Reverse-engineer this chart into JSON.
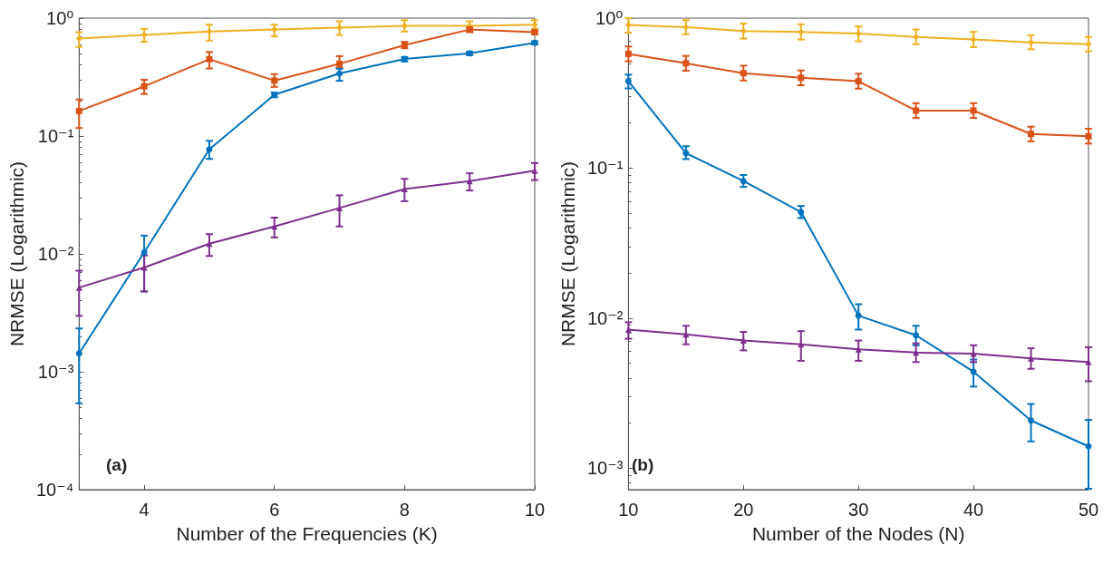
{
  "chart_data": [
    {
      "type": "line",
      "xlabel": "Number of the Frequencies (K)",
      "ylabel": "NRMSE (Logarithmic)",
      "annotations": [
        "(a)"
      ],
      "log": "y",
      "grid": false,
      "line_style": "solid",
      "xlim": [
        3,
        10
      ],
      "xticks": [
        4,
        6,
        8,
        10
      ],
      "ylim": [
        0.0001,
        1
      ],
      "yticks": [
        {
          "value": 0.0001,
          "label": "10⁻⁴"
        },
        {
          "value": 0.001,
          "label": "10⁻³"
        },
        {
          "value": 0.01,
          "label": "10⁻²"
        },
        {
          "value": 0.1,
          "label": "10⁻¹"
        },
        {
          "value": 1,
          "label": "10⁰"
        }
      ],
      "x": [
        3,
        4,
        5,
        6,
        7,
        8,
        9,
        10
      ],
      "series": [
        {
          "color": "#edb120",
          "marker": "diamond",
          "values": [
            0.67,
            0.72,
            0.77,
            0.8,
            0.83,
            0.86,
            0.86,
            0.88
          ],
          "errors": [
            [
              0.57,
              0.76
            ],
            [
              0.63,
              0.81
            ],
            [
              0.645,
              0.88
            ],
            [
              0.7,
              0.88
            ],
            [
              0.72,
              0.94
            ],
            [
              0.77,
              0.96
            ],
            [
              0.78,
              0.94
            ],
            [
              0.815,
              0.96
            ]
          ]
        },
        {
          "color": "#d95319",
          "marker": "square",
          "values": [
            0.163,
            0.264,
            0.448,
            0.295,
            0.41,
            0.59,
            0.8,
            0.76
          ],
          "errors": [
            [
              0.117,
              0.204
            ],
            [
              0.227,
              0.3
            ],
            [
              0.374,
              0.516
            ],
            [
              0.261,
              0.335
            ],
            [
              0.379,
              0.476
            ],
            [
              0.556,
              0.63
            ],
            [
              0.76,
              0.83
            ],
            [
              0.73,
              0.78
            ]
          ]
        },
        {
          "color": "#0072bd",
          "marker": "circle",
          "values": [
            0.00143,
            0.0103,
            0.0769,
            0.224,
            0.339,
            0.451,
            0.503,
            0.617
          ],
          "errors": [
            [
              0.00054,
              0.00233
            ],
            [
              0.0048,
              0.0143
            ],
            [
              0.064,
              0.091
            ],
            [
              0.213,
              0.234
            ],
            [
              0.294,
              0.372
            ],
            [
              0.429,
              0.468
            ],
            [
              0.485,
              0.52
            ],
            [
              0.599,
              0.636
            ]
          ]
        },
        {
          "color": "#7e2f8e",
          "marker": "triangle",
          "values": [
            0.00518,
            0.00766,
            0.0122,
            0.0171,
            0.0245,
            0.0355,
            0.0414,
            0.0508
          ],
          "errors": [
            [
              0.00298,
              0.0072
            ],
            [
              0.0048,
              0.0097
            ],
            [
              0.0096,
              0.0147
            ],
            [
              0.0138,
              0.0203
            ],
            [
              0.0171,
              0.0314
            ],
            [
              0.028,
              0.0433
            ],
            [
              0.0345,
              0.0483
            ],
            [
              0.0423,
              0.059
            ]
          ]
        }
      ]
    },
    {
      "type": "line",
      "xlabel": "Number of the Nodes (N)",
      "ylabel": "NRMSE (Logarithmic)",
      "annotations": [
        "(b)"
      ],
      "log": "y",
      "grid": false,
      "line_style": "solid",
      "xlim": [
        10,
        50
      ],
      "xticks": [
        10,
        20,
        30,
        40,
        50
      ],
      "ylim": [
        0.00072,
        1
      ],
      "yticks": [
        {
          "value": 0.001,
          "label": "10⁻³"
        },
        {
          "value": 0.01,
          "label": "10⁻²"
        },
        {
          "value": 0.1,
          "label": "10⁻¹"
        },
        {
          "value": 1,
          "label": "10⁰"
        }
      ],
      "x": [
        10,
        15,
        20,
        25,
        30,
        35,
        40,
        45,
        50
      ],
      "series": [
        {
          "color": "#edb120",
          "marker": "diamond",
          "values": [
            0.9,
            0.87,
            0.82,
            0.81,
            0.79,
            0.75,
            0.72,
            0.69,
            0.67
          ],
          "errors": [
            [
              0.8,
              1.0
            ],
            [
              0.78,
              0.97
            ],
            [
              0.73,
              0.92
            ],
            [
              0.72,
              0.91
            ],
            [
              0.7,
              0.88
            ],
            [
              0.67,
              0.84
            ],
            [
              0.64,
              0.81
            ],
            [
              0.62,
              0.77
            ],
            [
              0.6,
              0.75
            ]
          ]
        },
        {
          "color": "#d95319",
          "marker": "square",
          "values": [
            0.578,
            0.5,
            0.43,
            0.4,
            0.38,
            0.242,
            0.242,
            0.169,
            0.163
          ],
          "errors": [
            [
              0.516,
              0.647
            ],
            [
              0.446,
              0.56
            ],
            [
              0.384,
              0.482
            ],
            [
              0.357,
              0.448
            ],
            [
              0.339,
              0.426
            ],
            [
              0.216,
              0.271
            ],
            [
              0.216,
              0.271
            ],
            [
              0.151,
              0.189
            ],
            [
              0.146,
              0.183
            ]
          ]
        },
        {
          "color": "#0072bd",
          "marker": "circle",
          "values": [
            0.38,
            0.126,
            0.082,
            0.051,
            0.0104,
            0.0077,
            0.0044,
            0.00208,
            0.0014
          ],
          "errors": [
            [
              0.34,
              0.42
            ],
            [
              0.115,
              0.14
            ],
            [
              0.075,
              0.09
            ],
            [
              0.0465,
              0.056
            ],
            [
              0.0084,
              0.0124
            ],
            [
              0.0066,
              0.0089
            ],
            [
              0.0035,
              0.0053
            ],
            [
              0.00151,
              0.00268
            ],
            [
              0.00073,
              0.0021
            ]
          ]
        },
        {
          "color": "#7e2f8e",
          "marker": "triangle",
          "values": [
            0.0084,
            0.0078,
            0.0071,
            0.0067,
            0.0062,
            0.0059,
            0.0058,
            0.0054,
            0.0051
          ],
          "errors": [
            [
              0.0073,
              0.0094
            ],
            [
              0.0067,
              0.0089
            ],
            [
              0.0061,
              0.0081
            ],
            [
              0.0052,
              0.0082
            ],
            [
              0.0052,
              0.0071
            ],
            [
              0.0051,
              0.0068
            ],
            [
              0.0051,
              0.0066
            ],
            [
              0.0046,
              0.0063
            ],
            [
              0.0038,
              0.0064
            ]
          ]
        }
      ]
    }
  ]
}
